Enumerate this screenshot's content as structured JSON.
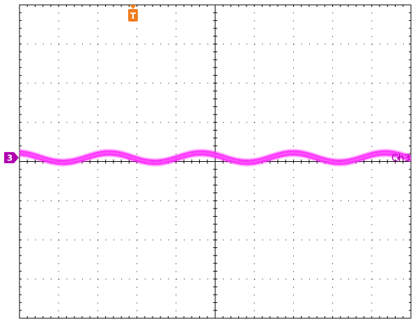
{
  "screen": {
    "background": "#ffffff",
    "grid_color": "#000000",
    "divisions": {
      "x": 10,
      "y": 8
    },
    "minor_ticks_per_division": 5
  },
  "trigger_marker": {
    "label": "T",
    "color": "#f07d1e",
    "position_div": 2.9
  },
  "channel": {
    "number_label": "3",
    "name_label": "Ch3",
    "color": "#ff2cff",
    "marker_color": "#b000b0",
    "offset_div": -0.1
  },
  "waveform": {
    "type": "sine",
    "cycles_on_screen": 4.25,
    "phase_deg": 100,
    "amplitude_div": 0.12,
    "band_thickness_div": 0.14
  }
}
